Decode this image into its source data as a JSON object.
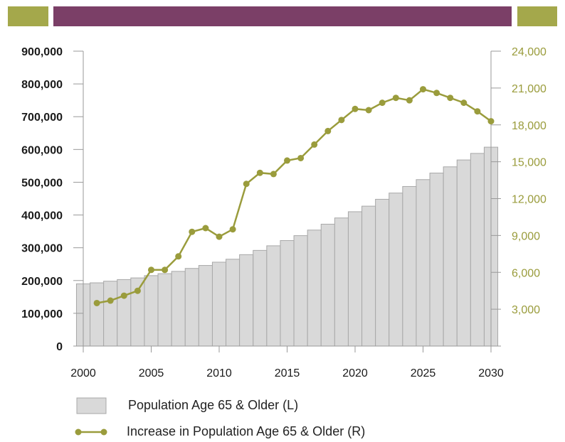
{
  "colors": {
    "band_side": "#a4a84b",
    "band_middle": "#7b3f67",
    "bar_fill": "#d9d9d9",
    "bar_stroke": "#a8a8a8",
    "line": "#9a9c3c",
    "axis": "#999999"
  },
  "legend": {
    "bars_label": "Population Age 65 & Older (L)",
    "line_label": "Increase in Population Age 65 & Older (R)"
  },
  "chart_data": {
    "type": "bar+line",
    "x_ticks": [
      "2000",
      "2005",
      "2010",
      "2015",
      "2020",
      "2025",
      "2030"
    ],
    "y_left_ticks": [
      "0",
      "100,000",
      "200,000",
      "300,000",
      "400,000",
      "500,000",
      "600,000",
      "700,000",
      "800,000",
      "900,000"
    ],
    "y_right_ticks": [
      "3,000",
      "6,000",
      "9,000",
      "12,000",
      "15,000",
      "18,000",
      "21,000",
      "24,000"
    ],
    "y_left_range": [
      0,
      900000
    ],
    "y_right_range": [
      0,
      24000
    ],
    "x_range": [
      2000,
      2030
    ],
    "legend_position": "bottom",
    "series": [
      {
        "name": "Population Age 65 & Older (L)",
        "axis": "left",
        "type": "bar",
        "x": [
          2000,
          2001,
          2002,
          2003,
          2004,
          2005,
          2006,
          2007,
          2008,
          2009,
          2010,
          2011,
          2012,
          2013,
          2014,
          2015,
          2016,
          2017,
          2018,
          2019,
          2020,
          2021,
          2022,
          2023,
          2024,
          2025,
          2026,
          2027,
          2028,
          2029,
          2030
        ],
        "values": [
          190000,
          193000,
          198000,
          203000,
          208000,
          215000,
          221000,
          228000,
          237000,
          246000,
          256000,
          265000,
          279000,
          292000,
          306000,
          322000,
          337000,
          354000,
          372000,
          391000,
          410000,
          427000,
          448000,
          467000,
          487000,
          508000,
          528000,
          547000,
          568000,
          588000,
          607000
        ]
      },
      {
        "name": "Increase in Population Age 65 & Older (R)",
        "axis": "right",
        "type": "line",
        "x": [
          2001,
          2002,
          2003,
          2004,
          2005,
          2006,
          2007,
          2008,
          2009,
          2010,
          2011,
          2012,
          2013,
          2014,
          2015,
          2016,
          2017,
          2018,
          2019,
          2020,
          2021,
          2022,
          2023,
          2024,
          2025,
          2026,
          2027,
          2028,
          2029,
          2030
        ],
        "values": [
          3500,
          3700,
          4100,
          4500,
          6200,
          6200,
          7300,
          9300,
          9600,
          8900,
          9500,
          13200,
          14100,
          14000,
          15100,
          15300,
          16400,
          17500,
          18400,
          19300,
          19200,
          19800,
          20200,
          20000,
          20900,
          20600,
          20200,
          19800,
          19100,
          18300
        ]
      }
    ]
  }
}
